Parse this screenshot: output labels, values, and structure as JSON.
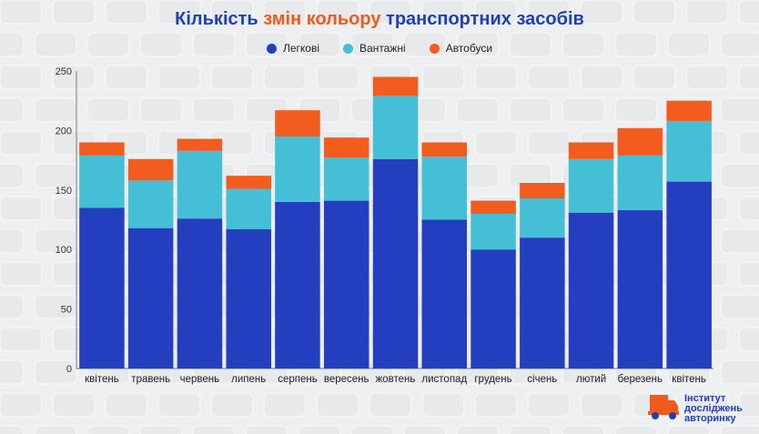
{
  "title": {
    "part1": "Кількість ",
    "accent": "змін кольору",
    "part2": " транспортних засобів"
  },
  "logo": {
    "line1": "Інститут",
    "line2": "досліджень",
    "line3": "авторинку"
  },
  "colors": {
    "title": "#1f3fb5",
    "accent": "#f05a1e",
    "series": [
      "#233ebf",
      "#44bfd6",
      "#f25c1f"
    ]
  },
  "chart_data": {
    "type": "bar",
    "stacked": true,
    "categories": [
      "квітень",
      "травень",
      "червень",
      "липень",
      "серпень",
      "вересень",
      "жовтень",
      "листопад",
      "грудень",
      "січень",
      "лютий",
      "березень",
      "квітень"
    ],
    "series": [
      {
        "name": "Легкові",
        "values": [
          135,
          118,
          126,
          117,
          140,
          141,
          176,
          125,
          100,
          110,
          131,
          133,
          157
        ]
      },
      {
        "name": "Вантажні",
        "values": [
          44,
          40,
          57,
          34,
          55,
          36,
          53,
          53,
          30,
          33,
          45,
          46,
          51
        ]
      },
      {
        "name": "Автобуси",
        "values": [
          11,
          18,
          10,
          11,
          22,
          17,
          16,
          12,
          11,
          13,
          14,
          23,
          17
        ]
      }
    ],
    "ylim": [
      0,
      250
    ],
    "yticks": [
      0,
      50,
      100,
      150,
      200,
      250
    ],
    "grid": false,
    "legend": "top-center"
  }
}
